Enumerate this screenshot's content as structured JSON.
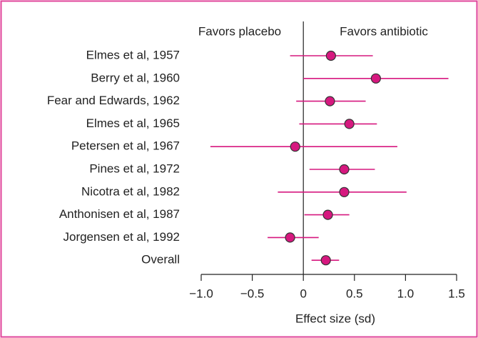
{
  "chart_data": {
    "type": "forest",
    "x_label": "Effect size (sd)",
    "annotations": [
      "Favors placebo",
      "Favors antibiotic"
    ],
    "categories": [
      "Elmes et al, 1957",
      "Berry et al, 1960",
      "Fear and Edwards, 1962",
      "Elmes et al, 1965",
      "Petersen et al, 1967",
      "Pines et al, 1972",
      "Nicotra et al, 1982",
      "Anthonisen et al, 1987",
      "Jorgensen et al, 1992",
      "Overall"
    ],
    "values": [
      0.27,
      0.71,
      0.26,
      0.45,
      -0.08,
      0.4,
      0.4,
      0.24,
      -0.13,
      0.22
    ],
    "lower": [
      -0.13,
      0.0,
      -0.07,
      -0.04,
      -0.91,
      0.06,
      -0.25,
      0.01,
      -0.35,
      0.08
    ],
    "upper": [
      0.68,
      1.42,
      0.61,
      0.72,
      0.92,
      0.7,
      1.01,
      0.45,
      0.15,
      0.35
    ],
    "color": "#d6187f",
    "xlim": [
      -1.0,
      1.5
    ],
    "xticks": [
      {
        "value": -1.0,
        "label": "−1.0"
      },
      {
        "value": -0.5,
        "label": "−0.5"
      },
      0,
      0.5,
      {
        "value": 1.0,
        "label": "1.0"
      },
      1.5
    ]
  }
}
